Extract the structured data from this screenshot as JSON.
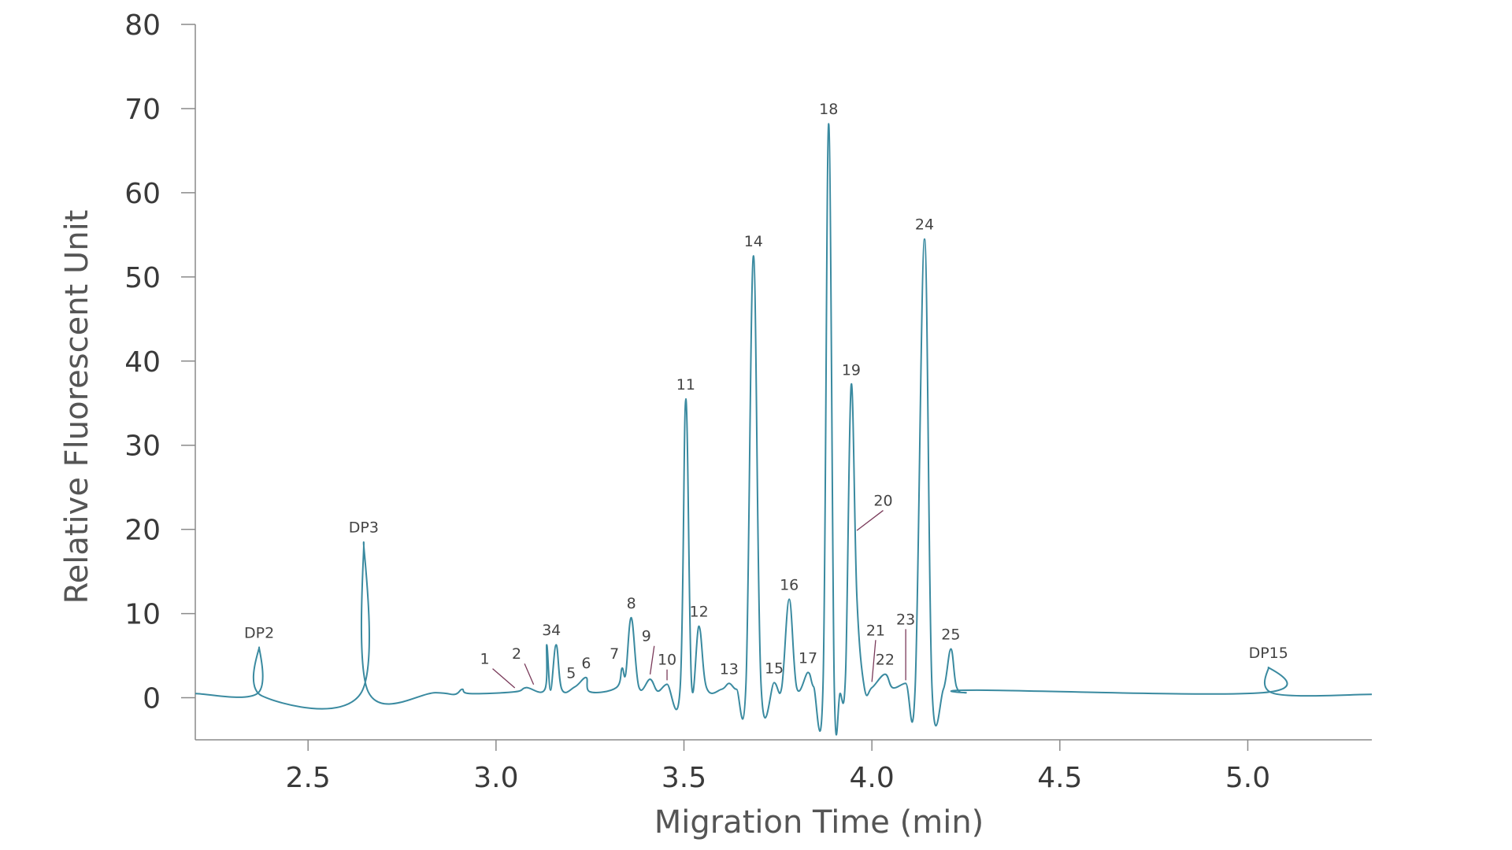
{
  "chart_data": {
    "type": "line",
    "title": "",
    "xlabel": "Migration Time (min)",
    "ylabel": "Relative Fluorescent Unit",
    "xlim": [
      2.2,
      5.33
    ],
    "ylim": [
      -5,
      80
    ],
    "xticks": [
      2.5,
      3.0,
      3.5,
      4.0,
      4.5,
      5.0
    ],
    "xtick_labels": [
      "2.5",
      "3.0",
      "3.5",
      "4.0",
      "4.5",
      "5.0"
    ],
    "yticks": [
      0,
      10,
      20,
      30,
      40,
      50,
      60,
      70,
      80
    ],
    "ytick_labels": [
      "0",
      "10",
      "20",
      "30",
      "40",
      "50",
      "60",
      "70",
      "80"
    ],
    "grid": false,
    "line_color": "#3a8aa0",
    "leader_color": "#7a3a5a",
    "series": [
      {
        "values": [
          [
            2.2,
            0.5
          ],
          [
            2.365,
            0.5
          ],
          [
            2.37,
            6.0
          ],
          [
            2.378,
            0.2
          ],
          [
            2.64,
            0.5
          ],
          [
            2.648,
            18.5
          ],
          [
            2.66,
            0.7
          ],
          [
            2.84,
            0.6
          ],
          [
            2.89,
            0.4
          ],
          [
            2.91,
            1.0
          ],
          [
            2.93,
            0.5
          ],
          [
            3.05,
            0.7
          ],
          [
            3.08,
            1.2
          ],
          [
            3.13,
            1.0
          ],
          [
            3.135,
            6.3
          ],
          [
            3.145,
            0.9
          ],
          [
            3.16,
            6.3
          ],
          [
            3.175,
            1.0
          ],
          [
            3.21,
            1.3
          ],
          [
            3.24,
            2.4
          ],
          [
            3.25,
            0.7
          ],
          [
            3.32,
            1.2
          ],
          [
            3.335,
            3.5
          ],
          [
            3.345,
            2.8
          ],
          [
            3.36,
            9.5
          ],
          [
            3.38,
            1.3
          ],
          [
            3.41,
            2.2
          ],
          [
            3.43,
            0.8
          ],
          [
            3.455,
            1.6
          ],
          [
            3.49,
            1.2
          ],
          [
            3.505,
            35.5
          ],
          [
            3.52,
            1.8
          ],
          [
            3.54,
            8.5
          ],
          [
            3.56,
            1.2
          ],
          [
            3.6,
            1.0
          ],
          [
            3.62,
            1.7
          ],
          [
            3.64,
            1.0
          ],
          [
            3.665,
            1.8
          ],
          [
            3.685,
            52.5
          ],
          [
            3.705,
            1.6
          ],
          [
            3.74,
            1.8
          ],
          [
            3.76,
            1.2
          ],
          [
            3.78,
            11.7
          ],
          [
            3.8,
            1.2
          ],
          [
            3.83,
            3.0
          ],
          [
            3.845,
            1.3
          ],
          [
            3.87,
            1.5
          ],
          [
            3.885,
            68.2
          ],
          [
            3.9,
            1.3
          ],
          [
            3.915,
            0.5
          ],
          [
            3.93,
            3.0
          ],
          [
            3.945,
            37.2
          ],
          [
            3.96,
            12.0
          ],
          [
            3.98,
            1.2
          ],
          [
            4.0,
            1.2
          ],
          [
            4.035,
            2.8
          ],
          [
            4.055,
            1.2
          ],
          [
            4.09,
            1.7
          ],
          [
            4.115,
            1.2
          ],
          [
            4.14,
            54.5
          ],
          [
            4.16,
            1.2
          ],
          [
            4.19,
            1.0
          ],
          [
            4.21,
            5.8
          ],
          [
            4.225,
            1.3
          ],
          [
            4.25,
            0.6
          ],
          [
            4.28,
            0.9
          ],
          [
            5.04,
            0.6
          ],
          [
            5.055,
            3.6
          ],
          [
            5.07,
            0.5
          ],
          [
            5.33,
            0.4
          ]
        ]
      }
    ],
    "annotations": [
      {
        "label": "DP2",
        "x": 2.37,
        "y": 6.0
      },
      {
        "label": "DP3",
        "x": 2.648,
        "y": 18.5
      },
      {
        "label": "1",
        "x": 3.05,
        "y": 0.8,
        "label_x": 2.97,
        "label_y": 4.2
      },
      {
        "label": "2",
        "x": 3.1,
        "y": 1.2,
        "label_x": 3.055,
        "label_y": 4.8
      },
      {
        "label": "3",
        "x": 3.135,
        "y": 6.3
      },
      {
        "label": "4",
        "x": 3.16,
        "y": 6.3
      },
      {
        "label": "5",
        "x": 3.2,
        "y": 1.2
      },
      {
        "label": "6",
        "x": 3.24,
        "y": 2.4
      },
      {
        "label": "7",
        "x": 3.315,
        "y": 3.5
      },
      {
        "label": "8",
        "x": 3.36,
        "y": 9.5
      },
      {
        "label": "9",
        "x": 3.41,
        "y": 2.4,
        "label_x": 3.4,
        "label_y": 6.9
      },
      {
        "label": "10",
        "x": 3.455,
        "y": 1.7,
        "label_x": 3.455,
        "label_y": 4.1
      },
      {
        "label": "11",
        "x": 3.505,
        "y": 35.5
      },
      {
        "label": "12",
        "x": 3.54,
        "y": 8.5
      },
      {
        "label": "13",
        "x": 3.62,
        "y": 1.7
      },
      {
        "label": "14",
        "x": 3.685,
        "y": 52.5
      },
      {
        "label": "15",
        "x": 3.74,
        "y": 1.8
      },
      {
        "label": "16",
        "x": 3.78,
        "y": 11.7
      },
      {
        "label": "17",
        "x": 3.83,
        "y": 3.0
      },
      {
        "label": "18",
        "x": 3.885,
        "y": 68.2
      },
      {
        "label": "19",
        "x": 3.945,
        "y": 37.2
      },
      {
        "label": "20",
        "x": 3.96,
        "y": 19.5,
        "label_x": 4.03,
        "label_y": 23.0
      },
      {
        "label": "21",
        "x": 4.0,
        "y": 1.5,
        "label_x": 4.01,
        "label_y": 7.6
      },
      {
        "label": "22",
        "x": 4.035,
        "y": 2.8
      },
      {
        "label": "23",
        "x": 4.09,
        "y": 1.7,
        "label_x": 4.09,
        "label_y": 8.9
      },
      {
        "label": "24",
        "x": 4.14,
        "y": 54.5
      },
      {
        "label": "25",
        "x": 4.21,
        "y": 5.8
      },
      {
        "label": "DP15",
        "x": 5.055,
        "y": 3.6
      }
    ]
  }
}
